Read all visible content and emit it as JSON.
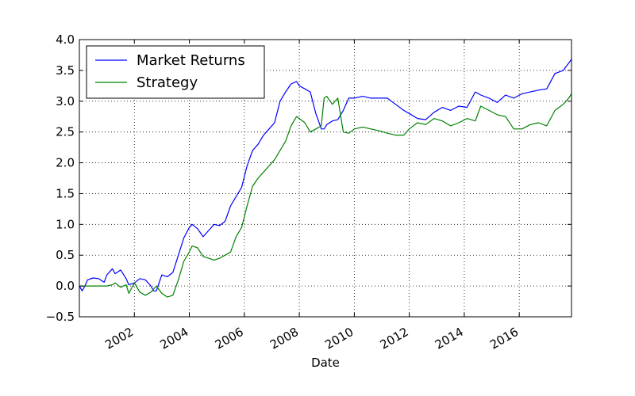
{
  "chart_data": {
    "type": "line",
    "title": "",
    "xlabel": "Date",
    "ylabel": "",
    "xlim": [
      2000.0,
      2017.9
    ],
    "ylim": [
      -0.5,
      4.0
    ],
    "x_ticks": [
      2002,
      2004,
      2006,
      2008,
      2010,
      2012,
      2014,
      2016
    ],
    "x_tick_labels": [
      "2002",
      "2004",
      "2006",
      "2008",
      "2010",
      "2012",
      "2014",
      "2016"
    ],
    "y_ticks": [
      -0.5,
      0.0,
      0.5,
      1.0,
      1.5,
      2.0,
      2.5,
      3.0,
      3.5,
      4.0
    ],
    "y_tick_labels": [
      "−0.5",
      "0.0",
      "0.5",
      "1.0",
      "1.5",
      "2.0",
      "2.5",
      "3.0",
      "3.5",
      "4.0"
    ],
    "grid": true,
    "legend_position": "top-left",
    "series": [
      {
        "name": "Market Returns",
        "color": "#0000ff",
        "x": [
          2000.0,
          2000.1,
          2000.2,
          2000.3,
          2000.5,
          2000.7,
          2000.9,
          2001.0,
          2001.2,
          2001.3,
          2001.5,
          2001.7,
          2001.8,
          2002.0,
          2002.2,
          2002.4,
          2002.6,
          2002.7,
          2002.8,
          2002.9,
          2003.0,
          2003.2,
          2003.4,
          2003.6,
          2003.8,
          2004.0,
          2004.1,
          2004.3,
          2004.5,
          2004.7,
          2004.9,
          2005.1,
          2005.3,
          2005.5,
          2005.7,
          2005.9,
          2006.1,
          2006.3,
          2006.5,
          2006.7,
          2006.9,
          2007.1,
          2007.3,
          2007.5,
          2007.7,
          2007.9,
          2008.0,
          2008.2,
          2008.4,
          2008.6,
          2008.8,
          2008.9,
          2009.0,
          2009.2,
          2009.4,
          2009.6,
          2009.8,
          2010.0,
          2010.3,
          2010.6,
          2010.9,
          2011.2,
          2011.5,
          2011.8,
          2012.0,
          2012.3,
          2012.6,
          2012.9,
          2013.2,
          2013.5,
          2013.8,
          2014.1,
          2014.4,
          2014.6,
          2014.9,
          2015.2,
          2015.5,
          2015.8,
          2016.1,
          2016.4,
          2016.7,
          2017.0,
          2017.3,
          2017.6,
          2017.8,
          2017.9
        ],
        "values": [
          0.0,
          -0.08,
          0.0,
          0.1,
          0.13,
          0.12,
          0.06,
          0.18,
          0.28,
          0.2,
          0.26,
          0.12,
          0.02,
          0.05,
          0.12,
          0.1,
          0.0,
          -0.08,
          -0.08,
          0.05,
          0.18,
          0.15,
          0.22,
          0.5,
          0.78,
          0.95,
          1.0,
          0.93,
          0.8,
          0.9,
          1.0,
          0.98,
          1.05,
          1.3,
          1.45,
          1.6,
          1.95,
          2.2,
          2.3,
          2.45,
          2.55,
          2.65,
          3.0,
          3.15,
          3.28,
          3.32,
          3.25,
          3.2,
          3.15,
          2.8,
          2.55,
          2.55,
          2.62,
          2.68,
          2.7,
          2.85,
          3.05,
          3.05,
          3.08,
          3.05,
          3.05,
          3.05,
          2.95,
          2.85,
          2.8,
          2.72,
          2.7,
          2.82,
          2.9,
          2.85,
          2.92,
          2.9,
          3.15,
          3.1,
          3.05,
          2.98,
          3.1,
          3.05,
          3.12,
          3.15,
          3.18,
          3.2,
          3.45,
          3.5,
          3.62,
          3.68
        ]
      },
      {
        "name": "Strategy",
        "color": "#008000",
        "x": [
          2000.0,
          2000.5,
          2001.0,
          2001.2,
          2001.3,
          2001.5,
          2001.7,
          2001.8,
          2002.0,
          2002.2,
          2002.4,
          2002.6,
          2002.8,
          2003.0,
          2003.2,
          2003.4,
          2003.6,
          2003.8,
          2004.0,
          2004.1,
          2004.3,
          2004.5,
          2004.7,
          2004.9,
          2005.1,
          2005.3,
          2005.5,
          2005.7,
          2005.9,
          2006.1,
          2006.3,
          2006.5,
          2006.7,
          2006.9,
          2007.1,
          2007.3,
          2007.5,
          2007.7,
          2007.9,
          2008.0,
          2008.2,
          2008.4,
          2008.6,
          2008.8,
          2008.9,
          2009.0,
          2009.2,
          2009.4,
          2009.6,
          2009.8,
          2010.0,
          2010.3,
          2010.6,
          2010.9,
          2011.2,
          2011.5,
          2011.8,
          2012.0,
          2012.3,
          2012.6,
          2012.9,
          2013.2,
          2013.5,
          2013.8,
          2014.1,
          2014.4,
          2014.6,
          2014.9,
          2015.2,
          2015.5,
          2015.8,
          2016.1,
          2016.4,
          2016.7,
          2017.0,
          2017.3,
          2017.6,
          2017.8,
          2017.9
        ],
        "values": [
          0.0,
          0.0,
          0.0,
          0.02,
          0.05,
          -0.02,
          0.02,
          -0.12,
          0.05,
          -0.1,
          -0.15,
          -0.1,
          0.0,
          -0.12,
          -0.18,
          -0.15,
          0.1,
          0.4,
          0.55,
          0.65,
          0.62,
          0.48,
          0.45,
          0.42,
          0.45,
          0.5,
          0.55,
          0.8,
          0.95,
          1.3,
          1.62,
          1.75,
          1.85,
          1.95,
          2.05,
          2.2,
          2.35,
          2.6,
          2.75,
          2.72,
          2.65,
          2.5,
          2.55,
          2.6,
          3.05,
          3.08,
          2.95,
          3.05,
          2.5,
          2.48,
          2.55,
          2.58,
          2.55,
          2.52,
          2.48,
          2.45,
          2.45,
          2.55,
          2.65,
          2.62,
          2.72,
          2.68,
          2.6,
          2.65,
          2.72,
          2.68,
          2.92,
          2.85,
          2.78,
          2.75,
          2.55,
          2.55,
          2.62,
          2.65,
          2.6,
          2.85,
          2.95,
          3.05,
          3.12
        ]
      }
    ]
  }
}
